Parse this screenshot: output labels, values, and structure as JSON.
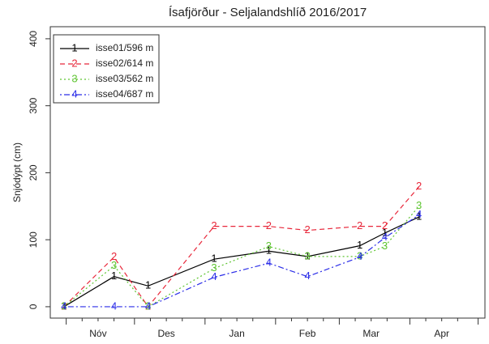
{
  "chart_data": {
    "type": "line",
    "title": "Ísafjörður - Seljalandshlíð 2016/2017",
    "ylabel": "Snjódýpt (cm)",
    "x": [
      30,
      52,
      67,
      96,
      120,
      137,
      160,
      171,
      186
    ],
    "xlim": [
      24,
      215
    ],
    "xticks": [
      {
        "value": 45,
        "label": "Nóv"
      },
      {
        "value": 75,
        "label": "Des"
      },
      {
        "value": 106,
        "label": "Jan"
      },
      {
        "value": 137,
        "label": "Feb"
      },
      {
        "value": 165,
        "label": "Mar"
      },
      {
        "value": 196,
        "label": "Apr"
      }
    ],
    "xmajorticks": [
      31,
      61,
      92,
      123,
      151,
      182,
      212
    ],
    "xminorticks": [
      38,
      45,
      52,
      68,
      75,
      82,
      99,
      106,
      113,
      130,
      137,
      144,
      158,
      165,
      172,
      189,
      196,
      203
    ],
    "ylim": [
      -17,
      418
    ],
    "yticks": [
      0,
      100,
      200,
      300,
      400
    ],
    "legend": "top-left",
    "series": [
      {
        "name": "isse01/596 m",
        "marker": "1",
        "color": "#000000",
        "linestyle": "solid",
        "values": [
          0,
          45,
          31,
          71,
          83,
          75,
          91,
          110,
          134
        ]
      },
      {
        "name": "isse02/614 m",
        "marker": "2",
        "color": "#e8273a",
        "linestyle": "dashed",
        "values": [
          0,
          74,
          0,
          120,
          120,
          114,
          120,
          120,
          179
        ]
      },
      {
        "name": "isse03/562 m",
        "marker": "3",
        "color": "#5fc532",
        "linestyle": "dotted",
        "values": [
          0,
          61,
          0,
          57,
          90,
          75,
          75,
          90,
          150
        ]
      },
      {
        "name": "isse04/687 m",
        "marker": "4",
        "color": "#2c2ee8",
        "linestyle": "dotdash",
        "values": [
          0,
          0,
          0,
          44,
          65,
          45,
          74,
          103,
          137
        ]
      }
    ]
  }
}
